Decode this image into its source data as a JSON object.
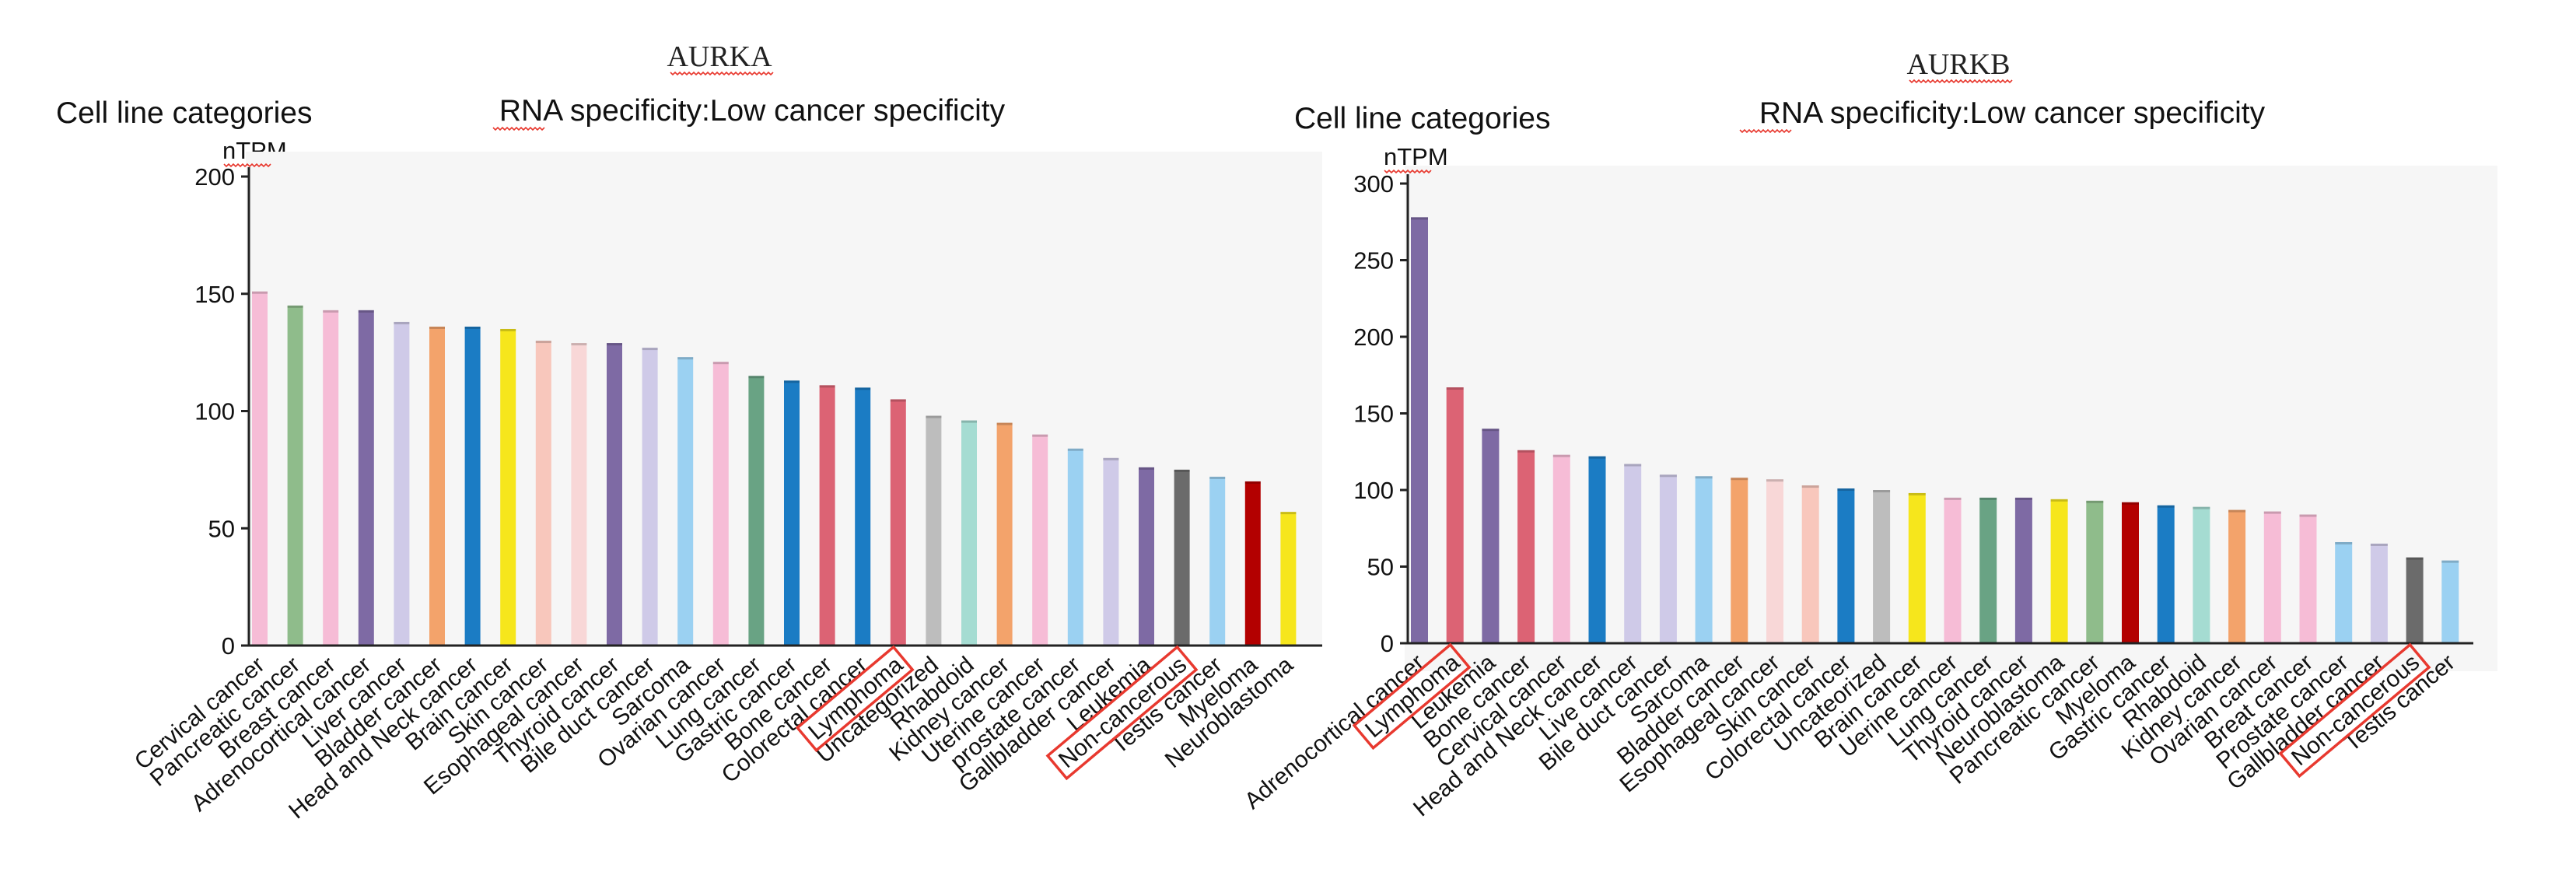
{
  "colors": {
    "highlight_box": "#e8392f",
    "spellcheck_underline": "#e8392f",
    "plot_background": "#f6f6f6"
  },
  "chart_data": [
    {
      "type": "bar",
      "gene": "AURKA",
      "left_heading": "Cell line categories",
      "title": "RNA specificity:Low cancer specificity",
      "ylabel": "nTPM",
      "ylim": [
        0,
        200
      ],
      "yticks": [
        0,
        50,
        100,
        150,
        200
      ],
      "grid": false,
      "categories": [
        "Cervical cancer",
        "Pancreatic cancer",
        "Breast cancer",
        "Adrenocortical cancer",
        "Liver cancer",
        "Bladder cancer",
        "Head and Neck cancer",
        "Brain cancer",
        "Skin cancer",
        "Esophageal cancer",
        "Thyroid cancer",
        "Bile duct cancer",
        "Sarcoma",
        "Ovarian cancer",
        "Lung cancer",
        "Gastric cancer",
        "Bone cancer",
        "Colorectal cancer",
        "Lymphoma",
        "Uncategorized",
        "Rhabdoid",
        "Kidney cancer",
        "Uterine cancer",
        "prostate cancer",
        "Gallbladder cancer",
        "Leukemia",
        "Non-cancerous",
        "Testis cancer",
        "Myeloma",
        "Neuroblastoma"
      ],
      "values": [
        151,
        145,
        143,
        143,
        138,
        136,
        136,
        135,
        130,
        129,
        129,
        127,
        123,
        121,
        115,
        113,
        111,
        110,
        105,
        98,
        96,
        95,
        90,
        84,
        80,
        76,
        75,
        72,
        70,
        57
      ],
      "bar_colors": [
        "#f6bcd6",
        "#8fbc8b",
        "#f6bcd6",
        "#7e6aa4",
        "#cfcae8",
        "#f3a36b",
        "#1b7cc4",
        "#f6e61c",
        "#f8c7bc",
        "#f8d7d7",
        "#7e6aa4",
        "#cfcae8",
        "#9bd1f2",
        "#f6bcd6",
        "#69a384",
        "#1b7cc4",
        "#dc6374",
        "#1b7cc4",
        "#dc6374",
        "#bdbdbd",
        "#a5dcd2",
        "#f3a36b",
        "#f6bcd6",
        "#9bd1f2",
        "#cfcae8",
        "#7e6aa4",
        "#6b6b6b",
        "#9bd1f2",
        "#b30000",
        "#f6e61c"
      ],
      "highlighted": [
        "Lymphoma",
        "Non-cancerous"
      ]
    },
    {
      "type": "bar",
      "gene": "AURKB",
      "left_heading": "Cell line categories",
      "title": "RNA specificity:Low cancer specificity",
      "ylabel": "nTPM",
      "ylim": [
        0,
        300
      ],
      "yticks": [
        0,
        50,
        100,
        150,
        200,
        250,
        300
      ],
      "grid": false,
      "categories": [
        "Adrenocortical cancer",
        "Lymphoma",
        "Leukemia",
        "Bone cancer",
        "Cervical cancer",
        "Head and Neck cancer",
        "Live cancer",
        "Bile duct cancer",
        "Sarcoma",
        "Bladder cancer",
        "Esophageal cancer",
        "Skin cancer",
        "Colorectal cancer",
        "Uncateorized",
        "Brain cancer",
        "Uerine cancer",
        "Lung cancer",
        "Thyroid cancer",
        "Neuroblastoma",
        "Pancreatic cancer",
        "Myeloma",
        "Gastric cancer",
        "Rhabdoid",
        "Kidney cancer",
        "Ovarian cancer",
        "Breat cancer",
        "Prostate cancer",
        "Gallbladder cancer",
        "Non-cancerous",
        "Testis cancer"
      ],
      "values": [
        278,
        167,
        140,
        126,
        123,
        122,
        117,
        110,
        109,
        108,
        107,
        103,
        101,
        100,
        98,
        95,
        95,
        95,
        94,
        93,
        92,
        90,
        89,
        87,
        86,
        84,
        66,
        65,
        56,
        54
      ],
      "bar_colors": [
        "#7e6aa4",
        "#dc6374",
        "#7e6aa4",
        "#dc6374",
        "#f6bcd6",
        "#1b7cc4",
        "#cfcae8",
        "#cfcae8",
        "#9bd1f2",
        "#f3a36b",
        "#f8d7d7",
        "#f8c7bc",
        "#1b7cc4",
        "#bdbdbd",
        "#f6e61c",
        "#f6bcd6",
        "#69a384",
        "#7e6aa4",
        "#f6e61c",
        "#8fbc8b",
        "#b30000",
        "#1b7cc4",
        "#a5dcd2",
        "#f3a36b",
        "#f6bcd6",
        "#f6bcd6",
        "#9bd1f2",
        "#cfcae8",
        "#6b6b6b",
        "#9bd1f2"
      ],
      "highlighted": [
        "Lymphoma",
        "Non-cancerous"
      ]
    }
  ]
}
